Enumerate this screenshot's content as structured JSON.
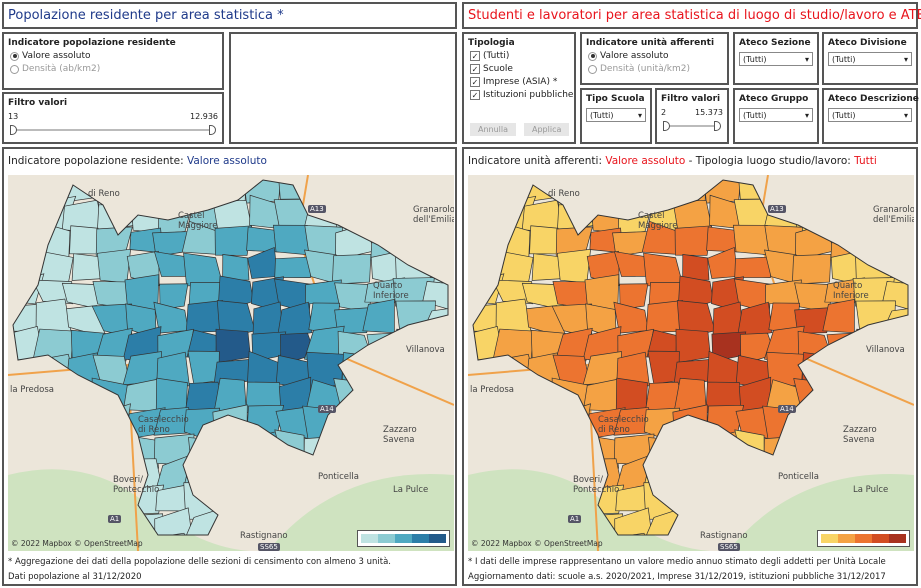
{
  "left": {
    "title": "Popolazione residente per area statistica *",
    "indicator": {
      "label": "Indicatore popolazione residente",
      "options": [
        "Valore assoluto",
        "Densità (ab/km2)"
      ],
      "selected": 0
    },
    "filter": {
      "label": "Filtro valori",
      "min": "13",
      "max": "12.936"
    },
    "map": {
      "title_prefix": "Indicatore popolazione residente: ",
      "title_value": "Valore assoluto",
      "attribution": "© 2022 Mapbox  © OpenStreetMap",
      "palette": [
        "#bfe3e2",
        "#8ccbd2",
        "#4fa9c1",
        "#2c7ea8",
        "#235a8a"
      ]
    },
    "notes": [
      "* Aggregazione dei dati della popolazione delle sezioni di censimento con almeno 3 unità.",
      "Dati popolazione al 31/12/2020"
    ]
  },
  "right": {
    "title": "Studenti e lavoratori per area statistica di luogo di studio/lavoro e ATECO",
    "tipologia": {
      "label": "Tipologia",
      "items": [
        "(Tutti)",
        "Scuole",
        "Imprese (ASIA) *",
        "Istituzioni pubbliche"
      ],
      "cancel": "Annulla",
      "apply": "Applica"
    },
    "indicator": {
      "label": "Indicatore unità afferenti",
      "options": [
        "Valore assoluto",
        "Densità (unità/km2)"
      ],
      "selected": 0
    },
    "tipo_scuola": {
      "label": "Tipo Scuola",
      "value": "(Tutti)"
    },
    "filter": {
      "label": "Filtro valori",
      "min": "2",
      "max": "15.373"
    },
    "ateco_sezione": {
      "label": "Ateco Sezione",
      "value": "(Tutti)"
    },
    "ateco_divisione": {
      "label": "Ateco Divisione",
      "value": "(Tutti)"
    },
    "ateco_gruppo": {
      "label": "Ateco Gruppo",
      "value": "(Tutti)"
    },
    "ateco_descrizione": {
      "label": "Ateco Descrizione",
      "value": "(Tutti)"
    },
    "map": {
      "title_prefix": "Indicatore unità afferenti: ",
      "title_value": "Valore assoluto",
      "title_mid": " - Tipologia luogo studio/lavoro: ",
      "title_value2": "Tutti",
      "attribution": "© 2022 Mapbox  © OpenStreetMap",
      "palette": [
        "#f8d466",
        "#f4a244",
        "#ec7430",
        "#d24d22",
        "#a8321f"
      ]
    },
    "notes": [
      "* I dati delle imprese rappresentano un valore medio annuo stimato degli addetti per Unità Locale",
      "Aggiornamento dati: scuole a.s. 2020/2021, Imprese 31/12/2019, istituzioni pubbliche 31/12/2017"
    ]
  },
  "map_labels": [
    "di Reno",
    "Castel Maggiore",
    "Granarolo dell'Emilia",
    "Quarto Inferiore",
    "la Predosa",
    "Casalecchio di Reno",
    "Villanova",
    "Zazzaro Savena",
    "Boveri/ Pontecchio",
    "La Pulce",
    "Rastignano",
    "Ponticella",
    "A13",
    "A14",
    "A1",
    "SS65"
  ],
  "colors": {
    "left_accent": "#1f3a8a",
    "right_accent": "#e8141c"
  }
}
